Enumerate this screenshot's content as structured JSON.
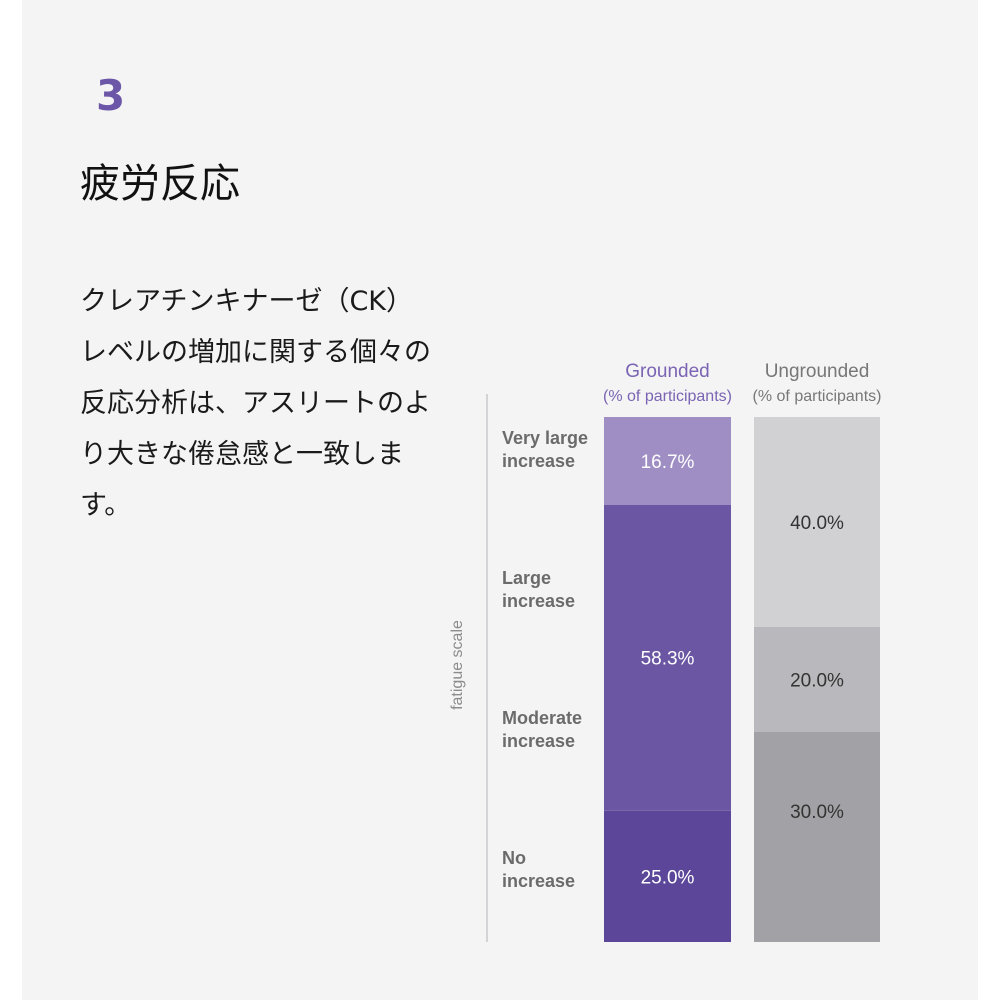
{
  "step_number": "3",
  "title": "疲労反応",
  "body": "クレアチンキナーゼ（CK）レベルの増加に関する個々の反応分析は、アスリートのより大きな倦怠感と一致します。",
  "colors": {
    "accent": "#6b56a7",
    "grounded_series_label": "#7a64b3",
    "ungrounded_series_label": "#777777",
    "category_label": "#6b6b6b",
    "axis_title": "#8c8c8c",
    "axis_line": "#c9c9cc"
  },
  "chart_data": {
    "type": "bar",
    "stacked": true,
    "axis_title": "fatigue scale",
    "categories": [
      "No\nincrease",
      "Moderate\nincrease",
      "Large\nincrease",
      "Very large\nincrease"
    ],
    "ylim": [
      0,
      100
    ],
    "series": [
      {
        "name": "Grounded",
        "sublabel": "(% of participants)",
        "values": [
          25.0,
          58.3,
          16.7,
          0.0
        ],
        "labels": [
          "25.0%",
          "58.3%",
          "16.7%",
          ""
        ],
        "colors": [
          "#5b4699",
          "#6a56a3",
          "#9e8ec4",
          "#9e8ec4"
        ]
      },
      {
        "name": "Ungrounded",
        "sublabel": "(% of participants)",
        "values": [
          10.0,
          30.0,
          20.0,
          40.0
        ],
        "labels": [
          "",
          "30.0%",
          "20.0%",
          "40.0%"
        ],
        "colors": [
          "#a2a2a6",
          "#a2a2a6",
          "#b9b9bd",
          "#d1d1d4"
        ]
      }
    ]
  }
}
